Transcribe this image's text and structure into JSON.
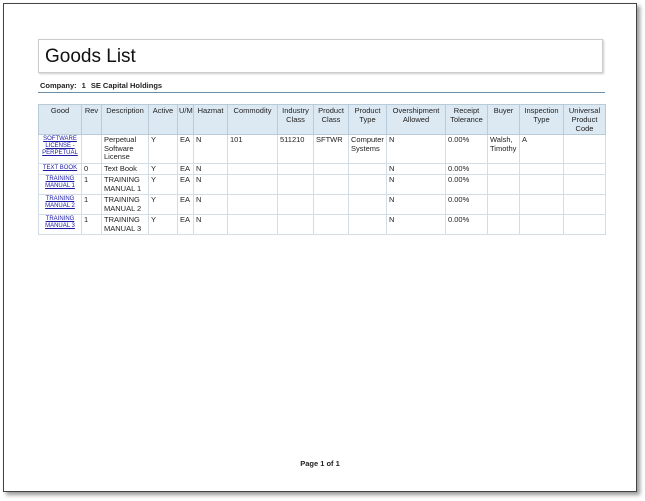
{
  "header": {
    "title": "Goods List"
  },
  "company": {
    "label": "Company:",
    "id": "1",
    "name": "SE Capital Holdings"
  },
  "table": {
    "columns": [
      "Good",
      "Rev",
      "Description",
      "Active",
      "U/M",
      "Hazmat",
      "Commodity",
      "Industry Class",
      "Product Class",
      "Product Type",
      "Overshipment Allowed",
      "Receipt Tolerance",
      "Buyer",
      "Inspection Type",
      "Universal Product Code"
    ],
    "rows": [
      [
        "SOFTWARE LICENSE - PERPETUAL",
        null,
        "Perpetual Software License",
        "Y",
        "EA",
        "N",
        "101",
        "511210",
        "SFTWR",
        "Computer Systems",
        "N",
        "0.00%",
        "Walsh, Timothy",
        "A",
        null
      ],
      [
        "TEXT BOOK",
        "0",
        "Text Book",
        "Y",
        "EA",
        "N",
        null,
        null,
        null,
        null,
        "N",
        "0.00%",
        null,
        null,
        null
      ],
      [
        "TRAINING MANUAL 1",
        "1",
        "TRAINING MANUAL 1",
        "Y",
        "EA",
        "N",
        null,
        null,
        null,
        null,
        "N",
        "0.00%",
        null,
        null,
        null
      ],
      [
        "TRAINING MANUAL 2",
        "1",
        "TRAINING MANUAL 2",
        "Y",
        "EA",
        "N",
        null,
        null,
        null,
        null,
        "N",
        "0.00%",
        null,
        null,
        null
      ],
      [
        "TRAINING MANUAL 3",
        "1",
        "TRAINING MANUAL 3",
        "Y",
        "EA",
        "N",
        null,
        null,
        null,
        null,
        "N",
        "0.00%",
        null,
        null,
        null
      ]
    ]
  },
  "footer": {
    "page": "Page 1 of 1"
  }
}
